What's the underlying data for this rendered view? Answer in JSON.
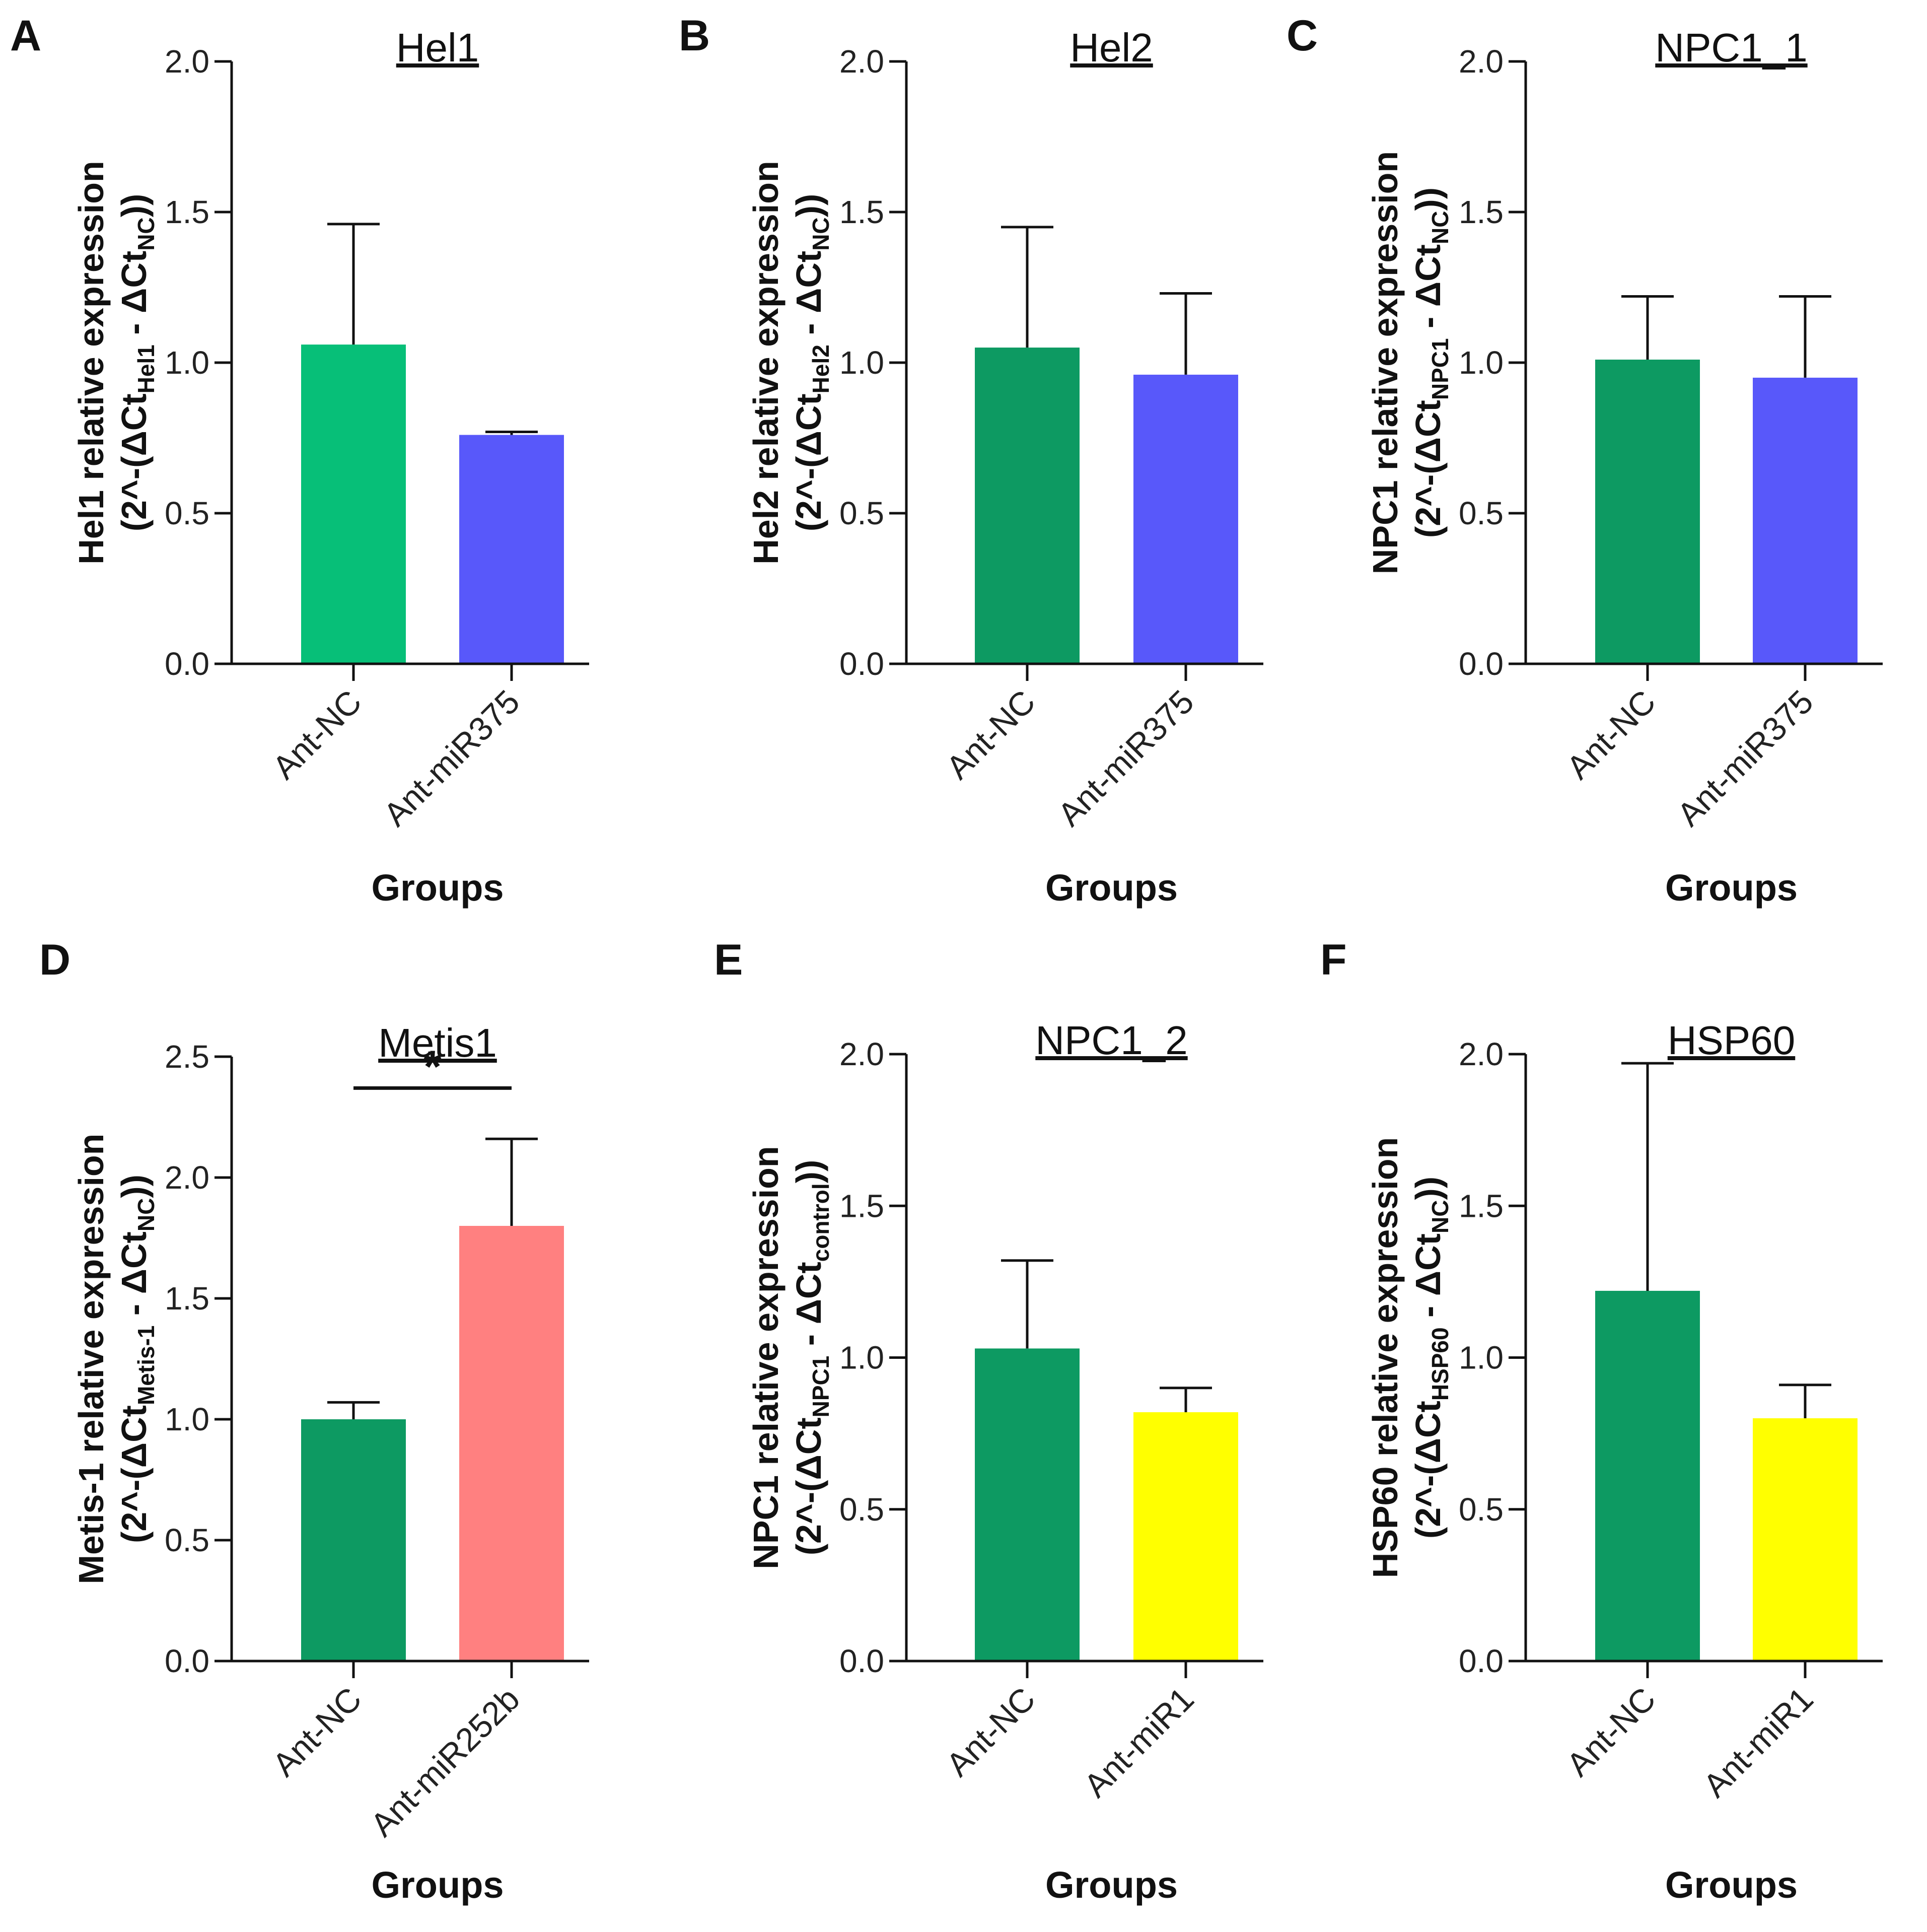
{
  "chart_data": [
    {
      "panel": "A",
      "type": "bar",
      "title": "Hel1",
      "xlabel": "Groups",
      "ylabel_line1": "Hel1 relative expression",
      "ylabel_line2": "(2^-(ΔCt",
      "ylabel_sub1": "Hel1",
      "ylabel_mid": " - ΔCt",
      "ylabel_sub2": "NC",
      "ylabel_end": "))",
      "categories": [
        "Ant-NC",
        "Ant-miR375"
      ],
      "values": [
        1.06,
        0.76
      ],
      "errors": [
        0.4,
        0.01
      ],
      "colors": [
        "#07bf78",
        "#5858fa"
      ],
      "ylim": [
        0,
        2.0
      ],
      "yticks": [
        0,
        0.5,
        1.0,
        1.5,
        2.0
      ],
      "ytick_labels": [
        "0.0",
        "0.5",
        "1.0",
        "1.5",
        "2.0"
      ]
    },
    {
      "panel": "B",
      "type": "bar",
      "title": "Hel2",
      "xlabel": "Groups",
      "ylabel_line1": "Hel2 relative expression",
      "ylabel_line2": "(2^-(ΔCt",
      "ylabel_sub1": "Hel2",
      "ylabel_mid": " - ΔCt",
      "ylabel_sub2": "NC",
      "ylabel_end": "))",
      "categories": [
        "Ant-NC",
        "Ant-miR375"
      ],
      "values": [
        1.05,
        0.96
      ],
      "errors": [
        0.4,
        0.27
      ],
      "colors": [
        "#0d9a62",
        "#5858fa"
      ],
      "ylim": [
        0,
        2.0
      ],
      "yticks": [
        0,
        0.5,
        1.0,
        1.5,
        2.0
      ],
      "ytick_labels": [
        "0.0",
        "0.5",
        "1.0",
        "1.5",
        "2.0"
      ]
    },
    {
      "panel": "C",
      "type": "bar",
      "title": "NPC1_1",
      "xlabel": "Groups",
      "ylabel_line1": "NPC1 relative expression",
      "ylabel_line2": "(2^-(ΔCt",
      "ylabel_sub1": "NPC1",
      "ylabel_mid": " - ΔCt",
      "ylabel_sub2": "NC",
      "ylabel_end": "))",
      "categories": [
        "Ant-NC",
        "Ant-miR375"
      ],
      "values": [
        1.01,
        0.95
      ],
      "errors": [
        0.21,
        0.27
      ],
      "colors": [
        "#0d9a62",
        "#5858fa"
      ],
      "ylim": [
        0,
        2.0
      ],
      "yticks": [
        0,
        0.5,
        1.0,
        1.5,
        2.0
      ],
      "ytick_labels": [
        "0.0",
        "0.5",
        "1.0",
        "1.5",
        "2.0"
      ]
    },
    {
      "panel": "D",
      "type": "bar",
      "title": "Metis1",
      "xlabel": "Groups",
      "ylabel_line1": "Metis-1 relative expression",
      "ylabel_line2": "(2^-(ΔCt",
      "ylabel_sub1": "Metis-1",
      "ylabel_mid": " - ΔCt",
      "ylabel_sub2": "NC",
      "ylabel_end": "))",
      "categories": [
        "Ant-NC",
        "Ant-miR252b"
      ],
      "values": [
        1.0,
        1.8
      ],
      "errors": [
        0.07,
        0.36
      ],
      "colors": [
        "#0d9a62",
        "#ff8080"
      ],
      "ylim": [
        0,
        2.5
      ],
      "yticks": [
        0,
        0.5,
        1.0,
        1.5,
        2.0,
        2.5
      ],
      "ytick_labels": [
        "0.0",
        "0.5",
        "1.0",
        "1.5",
        "2.0",
        "2.5"
      ],
      "significance": {
        "label": "*",
        "y": 2.37
      }
    },
    {
      "panel": "E",
      "type": "bar",
      "title": "NPC1_2",
      "xlabel": "Groups",
      "ylabel_line1": "NPC1 relative expression",
      "ylabel_line2": "(2^-(ΔCt",
      "ylabel_sub1": "NPC1",
      "ylabel_mid": " - ΔCt",
      "ylabel_sub2": "control",
      "ylabel_end": "))",
      "categories": [
        "Ant-NC",
        "Ant-miR1"
      ],
      "values": [
        1.03,
        0.82
      ],
      "errors": [
        0.29,
        0.08
      ],
      "colors": [
        "#0d9a62",
        "#ffff00"
      ],
      "ylim": [
        0,
        2.0
      ],
      "yticks": [
        0,
        0.5,
        1.0,
        1.5,
        2.0
      ],
      "ytick_labels": [
        "0.0",
        "0.5",
        "1.0",
        "1.5",
        "2.0"
      ]
    },
    {
      "panel": "F",
      "type": "bar",
      "title": "HSP60",
      "xlabel": "Groups",
      "ylabel_line1": "HSP60 relative expression",
      "ylabel_line2": "(2^-(ΔCt",
      "ylabel_sub1": "HSP60",
      "ylabel_mid": " - ΔCt",
      "ylabel_sub2": "NC",
      "ylabel_end": "))",
      "categories": [
        "Ant-NC",
        "Ant-miR1"
      ],
      "values": [
        1.22,
        0.8
      ],
      "errors": [
        0.75,
        0.11
      ],
      "colors": [
        "#0d9a62",
        "#ffff00"
      ],
      "ylim": [
        0,
        2.0
      ],
      "yticks": [
        0,
        0.5,
        1.0,
        1.5,
        2.0
      ],
      "ytick_labels": [
        "0.0",
        "0.5",
        "1.0",
        "1.5",
        "2.0"
      ]
    }
  ]
}
